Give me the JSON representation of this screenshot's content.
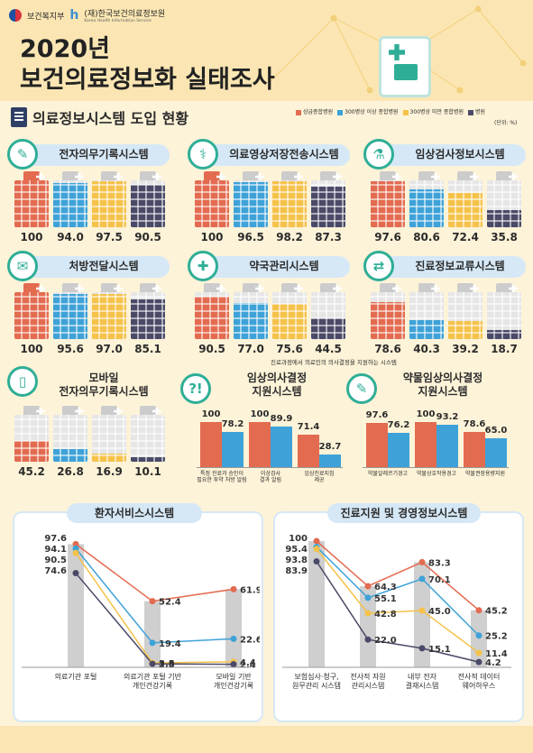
{
  "header": {
    "ministry": "보건복지부",
    "agency": "(재)한국보건의료정보원",
    "agency_en": "Korea Health Information Service",
    "year": "2020년",
    "title": "보건의료정보화 실태조사"
  },
  "section_title": "의료정보시스템 도입 현황",
  "unit": "(단위: %)",
  "note": "진료과정에서 의료인의 의사결정을 지원하는 시스템",
  "colors": {
    "tertiary": "#e36b50",
    "large": "#3ea2d8",
    "small": "#f5c24a",
    "clinic": "#4a4a68"
  },
  "chart_data": [
    {
      "type": "bar",
      "series": [
        {
          "name": "상급종합병원",
          "color": "#e36b50"
        },
        {
          "name": "300병상 이상 종합병원",
          "color": "#3ea2d8"
        },
        {
          "name": "300병상 미만 종합병원",
          "color": "#f5c24a"
        },
        {
          "name": "병원",
          "color": "#4a4a68"
        }
      ],
      "systems": [
        {
          "name": "전자의무기록시스템",
          "values": [
            100,
            94.0,
            97.5,
            90.5
          ],
          "labels": [
            "100",
            "94.0",
            "97.5",
            "90.5"
          ]
        },
        {
          "name": "의료영상저장전송시스템",
          "values": [
            100,
            96.5,
            98.2,
            87.3
          ],
          "labels": [
            "100",
            "96.5",
            "98.2",
            "87.3"
          ]
        },
        {
          "name": "임상검사정보시스템",
          "values": [
            97.6,
            80.6,
            72.4,
            35.8
          ],
          "labels": [
            "97.6",
            "80.6",
            "72.4",
            "35.8"
          ]
        },
        {
          "name": "처방전달시스템",
          "values": [
            100,
            95.6,
            97.0,
            85.1
          ],
          "labels": [
            "100",
            "95.6",
            "97.0",
            "85.1"
          ]
        },
        {
          "name": "약국관리시스템",
          "values": [
            90.5,
            77.0,
            75.6,
            44.5
          ],
          "labels": [
            "90.5",
            "77.0",
            "75.6",
            "44.5"
          ]
        },
        {
          "name": "진료정보교류시스템",
          "values": [
            78.6,
            40.3,
            39.2,
            18.7
          ],
          "labels": [
            "78.6",
            "40.3",
            "39.2",
            "18.7"
          ]
        },
        {
          "name": "모바일\n전자의무기록시스템",
          "values": [
            45.2,
            26.8,
            16.9,
            10.1
          ],
          "labels": [
            "45.2",
            "26.8",
            "16.9",
            "10.1"
          ]
        }
      ]
    },
    {
      "type": "bar",
      "title": "임상의사결정\n지원시스템",
      "categories": [
        "특정 진료과 승인이\n필요한 투약 처방 알림",
        "이상검사\n결과 알림",
        "임상진료지침\n제공"
      ],
      "series": [
        {
          "name": "상급종합병원",
          "values": [
            100,
            100,
            71.4
          ],
          "labels": [
            "100",
            "100",
            "71.4"
          ]
        },
        {
          "name": "300병상 이상 종합병원",
          "values": [
            78.2,
            89.9,
            28.7
          ],
          "labels": [
            "78.2",
            "89.9",
            "28.7"
          ]
        }
      ]
    },
    {
      "type": "bar",
      "title": "약물임상의사결정\n지원시스템",
      "categories": [
        "약물알레르기경고",
        "약물상호작용경고",
        "약물권장용량지원"
      ],
      "series": [
        {
          "name": "상급종합병원",
          "values": [
            97.6,
            100,
            78.6
          ],
          "labels": [
            "97.6",
            "100",
            "78.6"
          ]
        },
        {
          "name": "300병상 이상 종합병원",
          "values": [
            76.2,
            93.2,
            65.0
          ],
          "labels": [
            "76.2",
            "93.2",
            "65.0"
          ]
        }
      ]
    },
    {
      "type": "line",
      "title": "환자서비스시스템",
      "categories": [
        "의료기관 포털",
        "의료기관 포털 기반\n개인건강기록",
        "모바일 기반\n개인건강기록"
      ],
      "series": [
        {
          "name": "상급종합병원",
          "values": [
            97.6,
            52.4,
            61.9
          ],
          "labels": [
            "97.6",
            "52.4",
            "61.9"
          ]
        },
        {
          "name": "300병상 이상 종합병원",
          "values": [
            94.1,
            19.4,
            22.6
          ],
          "labels": [
            "94.1",
            "19.4",
            "22.6"
          ]
        },
        {
          "name": "300병상 미만 종합병원",
          "values": [
            90.5,
            3.5,
            4.4
          ],
          "labels": [
            "90.5",
            "3.5",
            "4.4"
          ]
        },
        {
          "name": "병원",
          "values": [
            74.6,
            2.8,
            2.4
          ],
          "labels": [
            "74.6",
            "2.8",
            "2.4"
          ]
        }
      ],
      "ylim": [
        0,
        100
      ]
    },
    {
      "type": "line",
      "title": "진료지원 및 경영정보시스템",
      "categories": [
        "보험심사·청구,\n원무관리 시스템",
        "전사적 자원\n관리시스템",
        "내부 전자\n결재시스템",
        "전사적 데이터\n웨어하우스"
      ],
      "series": [
        {
          "name": "상급종합병원",
          "values": [
            100,
            64.3,
            83.3,
            45.2
          ],
          "labels": [
            "100",
            "64.3",
            "83.3",
            "45.2"
          ]
        },
        {
          "name": "300병상 이상 종합병원",
          "values": [
            95.4,
            55.1,
            70.1,
            25.2
          ],
          "labels": [
            "95.4",
            "55.1",
            "70.1",
            "25.2"
          ]
        },
        {
          "name": "300병상 미만 종합병원",
          "values": [
            93.8,
            42.8,
            45.0,
            11.4
          ],
          "labels": [
            "93.8",
            "42.8",
            "45.0",
            "11.4"
          ]
        },
        {
          "name": "병원",
          "values": [
            83.9,
            22.0,
            15.1,
            4.2
          ],
          "labels": [
            "83.9",
            "22.0",
            "15.1",
            "4.2"
          ]
        }
      ],
      "ylim": [
        0,
        100
      ]
    }
  ]
}
